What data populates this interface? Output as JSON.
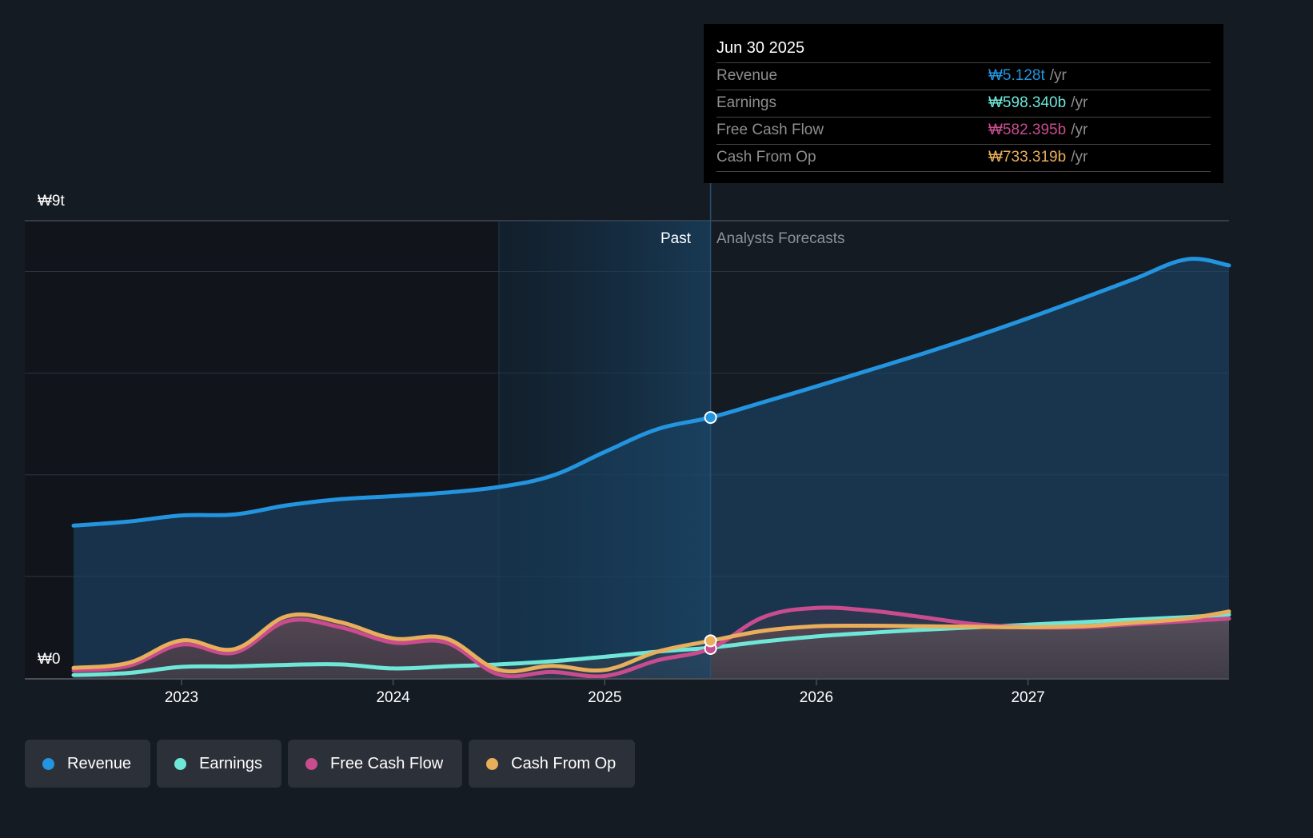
{
  "chart_data": {
    "type": "line",
    "title": "",
    "currency_symbol": "₩",
    "y_axis": {
      "min": 0,
      "max": 9,
      "unit": "trillion KRW",
      "tick_labels": [
        {
          "value": 9,
          "label": "₩9t"
        },
        {
          "value": 0,
          "label": "₩0"
        }
      ],
      "gridlines": [
        0,
        2,
        4,
        6,
        8,
        9
      ]
    },
    "x_axis": {
      "min": 2022.49,
      "max": 2027.95,
      "ticks": [
        {
          "value": 2023,
          "label": "2023"
        },
        {
          "value": 2024,
          "label": "2024"
        },
        {
          "value": 2025,
          "label": "2025"
        },
        {
          "value": 2026,
          "label": "2026"
        },
        {
          "value": 2027,
          "label": "2027"
        }
      ]
    },
    "divider": {
      "x": 2025.5,
      "past_label": "Past",
      "forecast_label": "Analysts Forecasts"
    },
    "highlight_start": 2024.5,
    "series": [
      {
        "name": "Revenue",
        "color": "#2394df",
        "points": [
          [
            2022.49,
            3.0
          ],
          [
            2022.75,
            3.08
          ],
          [
            2023.0,
            3.2
          ],
          [
            2023.25,
            3.22
          ],
          [
            2023.5,
            3.4
          ],
          [
            2023.75,
            3.52
          ],
          [
            2024.0,
            3.58
          ],
          [
            2024.25,
            3.65
          ],
          [
            2024.5,
            3.76
          ],
          [
            2024.75,
            3.98
          ],
          [
            2025.0,
            4.45
          ],
          [
            2025.25,
            4.9
          ],
          [
            2025.5,
            5.128
          ],
          [
            2025.75,
            5.43
          ],
          [
            2026.0,
            5.74
          ],
          [
            2026.25,
            6.06
          ],
          [
            2026.5,
            6.38
          ],
          [
            2026.75,
            6.72
          ],
          [
            2027.0,
            7.08
          ],
          [
            2027.25,
            7.46
          ],
          [
            2027.5,
            7.85
          ],
          [
            2027.75,
            8.24
          ],
          [
            2027.95,
            8.12
          ]
        ]
      },
      {
        "name": "Earnings",
        "color": "#6ee6d8",
        "points": [
          [
            2022.49,
            0.06
          ],
          [
            2022.75,
            0.1
          ],
          [
            2023.0,
            0.22
          ],
          [
            2023.25,
            0.23
          ],
          [
            2023.5,
            0.26
          ],
          [
            2023.75,
            0.27
          ],
          [
            2024.0,
            0.19
          ],
          [
            2024.25,
            0.23
          ],
          [
            2024.5,
            0.27
          ],
          [
            2024.75,
            0.33
          ],
          [
            2025.0,
            0.42
          ],
          [
            2025.25,
            0.52
          ],
          [
            2025.5,
            0.598
          ],
          [
            2025.75,
            0.72
          ],
          [
            2026.0,
            0.82
          ],
          [
            2026.25,
            0.89
          ],
          [
            2026.5,
            0.95
          ],
          [
            2026.75,
            1.0
          ],
          [
            2027.0,
            1.05
          ],
          [
            2027.25,
            1.1
          ],
          [
            2027.5,
            1.15
          ],
          [
            2027.75,
            1.2
          ],
          [
            2027.95,
            1.25
          ]
        ]
      },
      {
        "name": "Free Cash Flow",
        "color": "#c84c8e",
        "points": [
          [
            2022.49,
            0.15
          ],
          [
            2022.75,
            0.24
          ],
          [
            2023.0,
            0.66
          ],
          [
            2023.25,
            0.5
          ],
          [
            2023.5,
            1.12
          ],
          [
            2023.75,
            1.0
          ],
          [
            2024.0,
            0.7
          ],
          [
            2024.25,
            0.7
          ],
          [
            2024.5,
            0.07
          ],
          [
            2024.75,
            0.12
          ],
          [
            2025.0,
            0.04
          ],
          [
            2025.25,
            0.35
          ],
          [
            2025.5,
            0.582
          ],
          [
            2025.75,
            1.2
          ],
          [
            2026.0,
            1.38
          ],
          [
            2026.25,
            1.33
          ],
          [
            2026.5,
            1.2
          ],
          [
            2026.75,
            1.06
          ],
          [
            2027.0,
            1.0
          ],
          [
            2027.25,
            1.0
          ],
          [
            2027.5,
            1.06
          ],
          [
            2027.75,
            1.12
          ],
          [
            2027.95,
            1.17
          ]
        ]
      },
      {
        "name": "Cash From Op",
        "color": "#e8ae5c",
        "points": [
          [
            2022.49,
            0.2
          ],
          [
            2022.75,
            0.3
          ],
          [
            2023.0,
            0.74
          ],
          [
            2023.25,
            0.57
          ],
          [
            2023.5,
            1.22
          ],
          [
            2023.75,
            1.1
          ],
          [
            2024.0,
            0.78
          ],
          [
            2024.25,
            0.78
          ],
          [
            2024.5,
            0.16
          ],
          [
            2024.75,
            0.24
          ],
          [
            2025.0,
            0.16
          ],
          [
            2025.25,
            0.52
          ],
          [
            2025.5,
            0.733
          ],
          [
            2025.75,
            0.93
          ],
          [
            2026.0,
            1.02
          ],
          [
            2026.25,
            1.03
          ],
          [
            2026.5,
            1.02
          ],
          [
            2026.75,
            1.01
          ],
          [
            2027.0,
            1.0
          ],
          [
            2027.25,
            1.02
          ],
          [
            2027.5,
            1.09
          ],
          [
            2027.75,
            1.17
          ],
          [
            2027.95,
            1.31
          ]
        ]
      }
    ]
  },
  "tooltip": {
    "date": "Jun 30 2025",
    "rows": [
      {
        "label": "Revenue",
        "value": "₩5.128t",
        "unit": "/yr",
        "color": "#2394df"
      },
      {
        "label": "Earnings",
        "value": "₩598.340b",
        "unit": "/yr",
        "color": "#6ee6d8"
      },
      {
        "label": "Free Cash Flow",
        "value": "₩582.395b",
        "unit": "/yr",
        "color": "#c84c8e"
      },
      {
        "label": "Cash From Op",
        "value": "₩733.319b",
        "unit": "/yr",
        "color": "#e8ae5c"
      }
    ]
  },
  "legend": [
    {
      "label": "Revenue",
      "color": "#2394df"
    },
    {
      "label": "Earnings",
      "color": "#6ee6d8"
    },
    {
      "label": "Free Cash Flow",
      "color": "#c84c8e"
    },
    {
      "label": "Cash From Op",
      "color": "#e8ae5c"
    }
  ]
}
